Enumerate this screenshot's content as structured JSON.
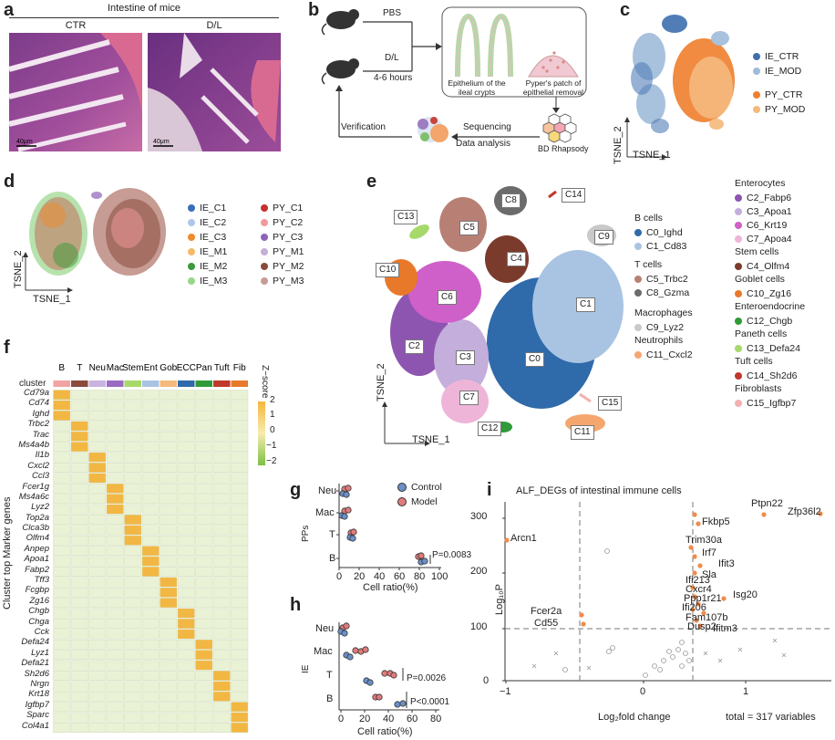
{
  "panel_labels": [
    "a",
    "b",
    "c",
    "d",
    "e",
    "f",
    "g",
    "h",
    "i"
  ],
  "panel_a": {
    "title": "Intestine of mice",
    "groups": [
      "CTR",
      "D/L"
    ],
    "scalebar": "40μm"
  },
  "panel_b": {
    "arrow_top": "PBS",
    "arrow_bottom_1": "D/L",
    "arrow_bottom_2": "4-6 hours",
    "label_crypts": "Epithelium of the ileal crypts",
    "label_pp": "Pyper's patch of epithelial removal",
    "label_seq_1": "Sequencing",
    "label_seq_2": "Data analysis",
    "label_platform": "BD Rhapsody",
    "label_verify": "Verification"
  },
  "panel_c": {
    "axis_x": "TSNE_1",
    "axis_y": "TSNE_2",
    "legend": [
      {
        "label": "IE_CTR",
        "color": "#3f6fb0"
      },
      {
        "label": "IE_MOD",
        "color": "#9fbbd9"
      },
      {
        "label": "PY_CTR",
        "color": "#ef7f2d"
      },
      {
        "label": "PY_MOD",
        "color": "#f5b97a"
      }
    ]
  },
  "panel_d": {
    "axis_x": "TSNE_1",
    "axis_y": "TSNE_2",
    "legend": [
      {
        "label": "IE_C1",
        "color": "#3b6fb6"
      },
      {
        "label": "IE_C2",
        "color": "#aec7e8"
      },
      {
        "label": "IE_C3",
        "color": "#f08a2c"
      },
      {
        "label": "IE_M1",
        "color": "#f7b96b"
      },
      {
        "label": "IE_M2",
        "color": "#3a9a3a"
      },
      {
        "label": "IE_M3",
        "color": "#98d68a"
      },
      {
        "label": "PY_C1",
        "color": "#c82f2f"
      },
      {
        "label": "PY_C2",
        "color": "#f29a99"
      },
      {
        "label": "PY_C3",
        "color": "#8c63b8"
      },
      {
        "label": "PY_M1",
        "color": "#c5b0d8"
      },
      {
        "label": "PY_M2",
        "color": "#8b4a3c"
      },
      {
        "label": "PY_M3",
        "color": "#c69c94"
      }
    ]
  },
  "panel_e": {
    "axis_x": "TSNE_1",
    "axis_y": "TSNE_2",
    "cluster_labels": [
      "C0",
      "C1",
      "C2",
      "C3",
      "C4",
      "C5",
      "C6",
      "C7",
      "C8",
      "C9",
      "C10",
      "C11",
      "C12",
      "C13",
      "C14",
      "C15"
    ],
    "legend": [
      {
        "head": "B cells",
        "items": [
          {
            "label": "C0_Ighd",
            "color": "#2f6aaa"
          },
          {
            "label": "C1_Cd83",
            "color": "#a9c4e2"
          }
        ]
      },
      {
        "head": "T cells",
        "items": [
          {
            "label": "C5_Trbc2",
            "color": "#b88074"
          },
          {
            "label": "C8_Gzma",
            "color": "#6b6b6b"
          }
        ]
      },
      {
        "head": "Macrophages",
        "items": [
          {
            "label": "C9_Lyz2",
            "color": "#c9c9c9"
          }
        ]
      },
      {
        "head": "Neutrophils",
        "items": [
          {
            "label": "C11_Cxcl2",
            "color": "#f5a66e"
          }
        ]
      },
      {
        "head": "Enterocytes",
        "items": [
          {
            "label": "C2_Fabp6",
            "color": "#8d55b0"
          },
          {
            "label": "C3_Apoa1",
            "color": "#c4aedb"
          },
          {
            "label": "C6_Krt19",
            "color": "#cf5fc9"
          },
          {
            "label": "C7_Apoa4",
            "color": "#eeb5d9"
          }
        ]
      },
      {
        "head": "Stem cells",
        "items": [
          {
            "label": "C4_Olfm4",
            "color": "#7b3b2c"
          }
        ]
      },
      {
        "head": "Goblet cells",
        "items": [
          {
            "label": "C10_Zg16",
            "color": "#e8792a"
          }
        ]
      },
      {
        "head": "Enteroendocrine",
        "items": [
          {
            "label": "C12_Chgb",
            "color": "#2f9a37"
          }
        ]
      },
      {
        "head": "Paneth cells",
        "items": [
          {
            "label": "C13_Defa24",
            "color": "#a6d96a"
          }
        ]
      },
      {
        "head": "Tuft cells",
        "items": [
          {
            "label": "C14_Sh2d6",
            "color": "#c0392b"
          }
        ]
      },
      {
        "head": "Fibroblasts",
        "items": [
          {
            "label": "C15_Igfbp7",
            "color": "#f2b1b0"
          }
        ]
      }
    ]
  },
  "panel_f": {
    "y_title": "Cluster top Marker genes",
    "colorbar_title": "Z−score",
    "colorbar_ticks": [
      "2",
      "1",
      "0",
      "−1",
      "−2"
    ],
    "row_header": "cluster",
    "columns": [
      {
        "label": "B",
        "color": "#f2a3a3"
      },
      {
        "label": "T",
        "color": "#8b4a3c"
      },
      {
        "label": "Neu",
        "color": "#c9b3e0"
      },
      {
        "label": "Mac",
        "color": "#9a6bc2"
      },
      {
        "label": "Stem",
        "color": "#a6d96a"
      },
      {
        "label": "Ent",
        "color": "#a9c4e2"
      },
      {
        "label": "Gob",
        "color": "#f5b97a"
      },
      {
        "label": "ECC",
        "color": "#2f6aaa"
      },
      {
        "label": "Pan",
        "color": "#2f9a37"
      },
      {
        "label": "Tuft",
        "color": "#c0392b"
      },
      {
        "label": "Fib",
        "color": "#e8792a"
      }
    ],
    "genes": [
      "Cd79a",
      "Cd74",
      "Ighd",
      "Trbc2",
      "Trac",
      "Ms4a4b",
      "Il1b",
      "Cxcl2",
      "Ccl3",
      "Fcer1g",
      "Ms4a6c",
      "Lyz2",
      "Top2a",
      "Clca3b",
      "Olfm4",
      "Anpep",
      "Apoa1",
      "Fabp2",
      "Tff3",
      "Fcgbp",
      "Zg16",
      "Chgb",
      "Chga",
      "Cck",
      "Defa24",
      "Lyz1",
      "Defa21",
      "Sh2d6",
      "Nrgn",
      "Krt18",
      "Igfbp7",
      "Sparc",
      "Col4a1"
    ]
  },
  "panel_g": {
    "y_title": "PPs",
    "x_title": "Cell ratio(%)",
    "categories": [
      "Neu",
      "Mac",
      "T",
      "B"
    ],
    "x_ticks": [
      "0",
      "20",
      "40",
      "60",
      "80",
      "100"
    ],
    "legend": [
      {
        "label": "Control",
        "color": "#6b8fc8"
      },
      {
        "label": "Model",
        "color": "#e07b7b"
      }
    ],
    "pvalue": "P=0.0083"
  },
  "panel_h": {
    "y_title": "IE",
    "x_title": "Cell ratio(%)",
    "categories": [
      "Neu",
      "Mac",
      "T",
      "B"
    ],
    "x_ticks": [
      "0",
      "20",
      "40",
      "60",
      "80"
    ],
    "pvalues": [
      "P=0.0026",
      "P<0.0001"
    ]
  },
  "panel_i": {
    "title": "ALF_DEGs of intestinal immune cells",
    "x_title": "Log₂fold change",
    "y_title": "Log₁₀P",
    "x_ticks": [
      "−1",
      "0",
      "1"
    ],
    "y_ticks": [
      "300",
      "200",
      "100",
      "0"
    ],
    "total": "total = 317 variables",
    "genes": [
      "Ptpn22",
      "Zfp36l2",
      "Fkbp5",
      "Trim30a",
      "Irf7",
      "Ifit3",
      "Sla",
      "Arcn1",
      "Ifi213",
      "Cxcr4",
      "Ppp1r21",
      "Isg20",
      "Ifi206",
      "Fam107b",
      "Dusp2",
      "Ifitm3",
      "Fcer2a",
      "Cd55"
    ]
  }
}
